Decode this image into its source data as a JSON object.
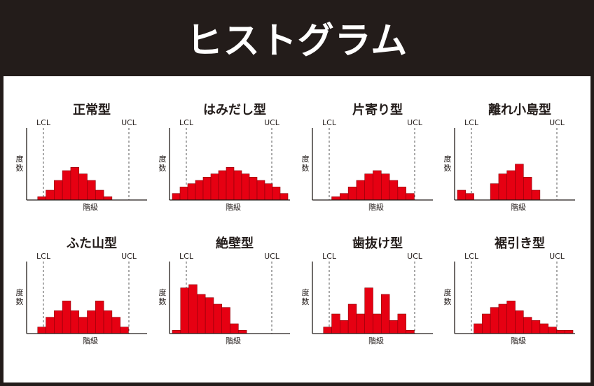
{
  "title": "ヒストグラム",
  "labels": {
    "lcl": "LCL",
    "ucl": "UCL",
    "ylabel_top": "度",
    "ylabel_bottom": "数",
    "xlabel": "階級"
  },
  "colors": {
    "background": "#231c1a",
    "bar_fill": "#e60012",
    "bar_stroke": "#8a0009",
    "text": "#231c1a"
  },
  "chart_data": [
    {
      "type": "bar",
      "title": "正常型",
      "values": [
        1,
        3,
        6,
        9,
        10,
        8,
        6,
        3,
        1
      ],
      "offset": 1,
      "bins": 14
    },
    {
      "type": "bar",
      "title": "はみだし型",
      "values": [
        2,
        4,
        5,
        6,
        7,
        8,
        9,
        10,
        9,
        8,
        7,
        6,
        5,
        4,
        2
      ],
      "offset": 0,
      "bins": 15
    },
    {
      "type": "bar",
      "title": "片寄り型",
      "values": [
        1,
        2,
        4,
        6,
        8,
        9,
        8,
        6,
        4,
        2
      ],
      "offset": 2,
      "bins": 14
    },
    {
      "type": "bar",
      "title": "離れ小島型",
      "values": [
        3,
        2,
        0,
        0,
        5,
        8,
        9,
        11,
        7,
        3
      ],
      "offset": 0,
      "bins": 14
    },
    {
      "type": "bar",
      "title": "ふた山型",
      "values": [
        2,
        5,
        7,
        10,
        7,
        5,
        7,
        10,
        7,
        5,
        2
      ],
      "offset": 1,
      "bins": 14
    },
    {
      "type": "bar",
      "title": "絶壁型",
      "values": [
        1,
        14,
        15,
        12,
        11,
        9,
        8,
        3,
        1
      ],
      "offset": 0,
      "bins": 14
    },
    {
      "type": "bar",
      "title": "歯抜け型",
      "values": [
        2,
        6,
        4,
        9,
        6,
        14,
        6,
        12,
        4,
        6,
        1
      ],
      "offset": 1,
      "bins": 14
    },
    {
      "type": "bar",
      "title": "裾引き型",
      "values": [
        3,
        6,
        8,
        9,
        10,
        7,
        5,
        4,
        3,
        2,
        1,
        1
      ],
      "offset": 2,
      "bins": 14
    }
  ]
}
